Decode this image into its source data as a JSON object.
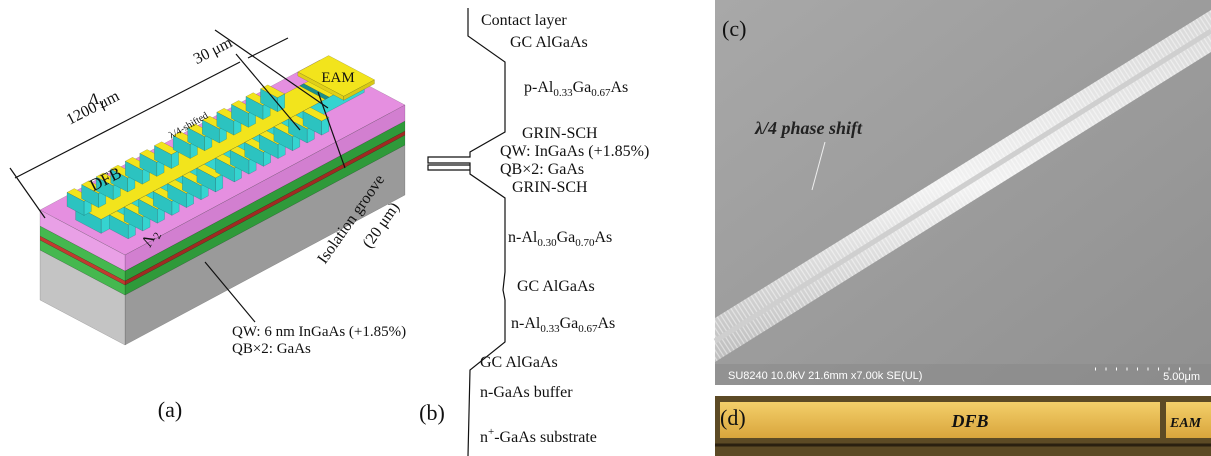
{
  "panel_a": {
    "label": "(a)",
    "length": "1200 μm",
    "eam_length": "30 μm",
    "eam": "EAM",
    "period1": [
      "Λ",
      "1"
    ],
    "shift": "λ/4-shifted",
    "dfb": "DFB",
    "period2": [
      "Λ",
      "2"
    ],
    "groove": [
      "Isolation groove",
      "(20 μm)"
    ],
    "qw": "QW: 6 nm InGaAs (+1.85%)",
    "qb": "QB×2:  GaAs"
  },
  "panel_b": {
    "label": "(b)",
    "layers": [
      [
        "Contact layer"
      ],
      [
        "GC AlGaAs"
      ],
      [
        "p-Al",
        "0.33",
        "Ga",
        "0.67",
        "As"
      ],
      [
        "GRIN-SCH"
      ],
      [
        "QW: InGaAs (+1.85%)"
      ],
      [
        "QB×2:  GaAs"
      ],
      [
        "GRIN-SCH"
      ],
      [
        "n-Al",
        "0.30",
        "Ga",
        "0.70",
        "As"
      ],
      [
        "GC AlGaAs"
      ],
      [
        "n-Al",
        "0.33",
        "Ga",
        "0.67",
        "As"
      ],
      [
        "GC AlGaAs"
      ],
      [
        "n-GaAs buffer"
      ],
      [
        "n",
        "+",
        "-GaAs substrate"
      ]
    ]
  },
  "panel_c": {
    "label": "(c)",
    "annotation": "λ/4 phase shift",
    "info": "SU8240 10.0kV 21.6mm x7.00k SE(UL)",
    "scale": "5.00μm"
  },
  "panel_d": {
    "label": "(d)",
    "dfb": "DFB",
    "eam": "EAM"
  }
}
